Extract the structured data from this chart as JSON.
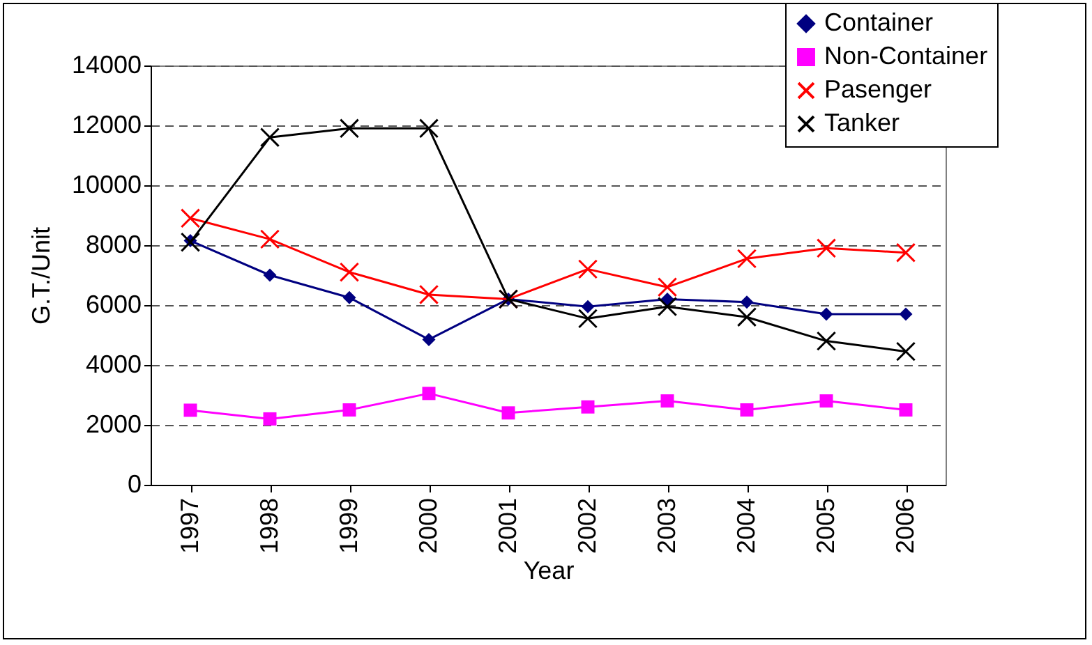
{
  "chart_data": {
    "type": "line",
    "xlabel": "Year",
    "ylabel": "G.T./Unit",
    "categories": [
      "1997",
      "1998",
      "1999",
      "2000",
      "2001",
      "2002",
      "2003",
      "2004",
      "2005",
      "2006"
    ],
    "ylim": [
      0,
      14000
    ],
    "yticks": [
      0,
      2000,
      4000,
      6000,
      8000,
      10000,
      12000,
      14000
    ],
    "grid": "y",
    "legend": "top right",
    "series": [
      {
        "name": "Container",
        "color": "#000080",
        "marker": "diamond",
        "values": [
          8150,
          7000,
          6250,
          4850,
          6200,
          5950,
          6200,
          6100,
          5700,
          5700
        ]
      },
      {
        "name": "Non-Container",
        "color": "#ff00ff",
        "marker": "square",
        "values": [
          2490,
          2200,
          2500,
          3050,
          2400,
          2600,
          2800,
          2500,
          2800,
          2500
        ]
      },
      {
        "name": "Pasenger",
        "color": "#ff0000",
        "marker": "cross",
        "values": [
          8900,
          8200,
          7100,
          6350,
          6200,
          7200,
          6600,
          7550,
          7900,
          7750
        ]
      },
      {
        "name": "Tanker",
        "color": "#000000",
        "marker": "cross",
        "values": [
          8100,
          11600,
          11900,
          11900,
          6200,
          5550,
          5950,
          5600,
          4800,
          4450
        ]
      }
    ]
  }
}
